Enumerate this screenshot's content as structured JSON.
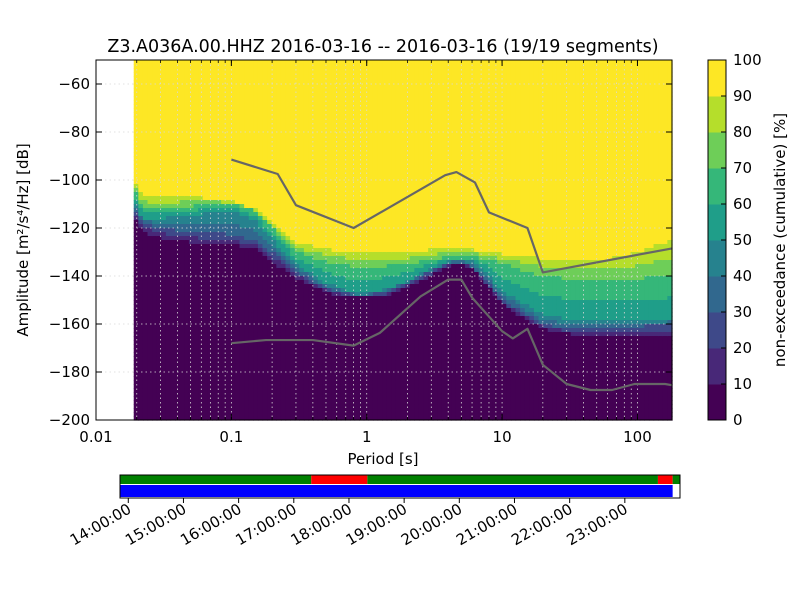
{
  "chart_data": [
    {
      "type": "heatmap",
      "title": "Z3.A036A.00.HHZ   2016-03-16 -- 2016-03-16  (19/19 segments)",
      "xlabel": "Period [s]",
      "ylabel": "Amplitude [m²/s⁴/Hz] [dB]",
      "x_scale": "log",
      "xlim": [
        0.01,
        180
      ],
      "ylim": [
        -200,
        -50
      ],
      "grid": true,
      "x_ticks": [
        {
          "value": 0.01,
          "label": "0.01"
        },
        {
          "value": 0.1,
          "label": "0.1"
        },
        {
          "value": 1,
          "label": "1"
        },
        {
          "value": 10,
          "label": "10"
        },
        {
          "value": 100,
          "label": "100"
        }
      ],
      "y_ticks": [
        {
          "value": -60,
          "label": "−60"
        },
        {
          "value": -80,
          "label": "−80"
        },
        {
          "value": -100,
          "label": "−100"
        },
        {
          "value": -120,
          "label": "−120"
        },
        {
          "value": -140,
          "label": "−140"
        },
        {
          "value": -160,
          "label": "−160"
        },
        {
          "value": -180,
          "label": "−180"
        },
        {
          "value": -200,
          "label": "−200"
        }
      ],
      "colorbar": {
        "label": "non-exceedance (cumulative) [%]",
        "range": [
          0,
          100
        ],
        "ticks": [
          "0",
          "10",
          "20",
          "30",
          "40",
          "50",
          "60",
          "70",
          "80",
          "90",
          "100"
        ],
        "colormap": [
          "#440154",
          "#482878",
          "#3e4989",
          "#31688e",
          "#26828e",
          "#1f9e89",
          "#35b779",
          "#6ece58",
          "#b5de2b",
          "#fde725"
        ]
      },
      "data_period_start": 0.019,
      "percentile_levels": [
        {
          "level": 10,
          "points": [
            [
              0.019,
              -115
            ],
            [
              0.022,
              -122
            ],
            [
              0.03,
              -124
            ],
            [
              0.05,
              -126
            ],
            [
              0.08,
              -127
            ],
            [
              0.1,
              -127
            ],
            [
              0.15,
              -129
            ],
            [
              0.2,
              -134
            ],
            [
              0.3,
              -141
            ],
            [
              0.5,
              -147
            ],
            [
              0.8,
              -149
            ],
            [
              1.0,
              -149
            ],
            [
              1.3,
              -149
            ],
            [
              2,
              -145
            ],
            [
              3,
              -140
            ],
            [
              4,
              -136
            ],
            [
              5,
              -135
            ],
            [
              6,
              -137
            ],
            [
              8,
              -145
            ],
            [
              10,
              -152
            ],
            [
              15,
              -158
            ],
            [
              20,
              -162
            ],
            [
              30,
              -164
            ],
            [
              50,
              -165
            ],
            [
              80,
              -165
            ],
            [
              100,
              -165
            ],
            [
              180,
              -165
            ]
          ]
        },
        {
          "level": 30,
          "points": [
            [
              0.019,
              -111
            ],
            [
              0.022,
              -118
            ],
            [
              0.03,
              -120
            ],
            [
              0.05,
              -122
            ],
            [
              0.08,
              -122
            ],
            [
              0.1,
              -123
            ],
            [
              0.15,
              -125
            ],
            [
              0.2,
              -130
            ],
            [
              0.3,
              -138
            ],
            [
              0.5,
              -145
            ],
            [
              0.8,
              -148
            ],
            [
              1.0,
              -148
            ],
            [
              1.3,
              -147
            ],
            [
              2,
              -143
            ],
            [
              3,
              -138
            ],
            [
              4,
              -135
            ],
            [
              5,
              -134
            ],
            [
              6,
              -136
            ],
            [
              8,
              -143
            ],
            [
              10,
              -150
            ],
            [
              15,
              -156
            ],
            [
              20,
              -160
            ],
            [
              30,
              -162
            ],
            [
              50,
              -162
            ],
            [
              80,
              -161
            ],
            [
              100,
              -161
            ],
            [
              180,
              -160
            ]
          ]
        },
        {
          "level": 50,
          "points": [
            [
              0.019,
              -108
            ],
            [
              0.022,
              -116
            ],
            [
              0.03,
              -116
            ],
            [
              0.05,
              -115
            ],
            [
              0.08,
              -113
            ],
            [
              0.1,
              -113
            ],
            [
              0.15,
              -117
            ],
            [
              0.2,
              -125
            ],
            [
              0.3,
              -135
            ],
            [
              0.5,
              -143
            ],
            [
              0.8,
              -147
            ],
            [
              1.0,
              -147
            ],
            [
              1.3,
              -146
            ],
            [
              2,
              -142
            ],
            [
              3,
              -137
            ],
            [
              4,
              -134
            ],
            [
              5,
              -133
            ],
            [
              6,
              -134
            ],
            [
              8,
              -140
            ],
            [
              10,
              -146
            ],
            [
              15,
              -152
            ],
            [
              20,
              -156
            ],
            [
              30,
              -158
            ],
            [
              50,
              -159
            ],
            [
              80,
              -159
            ],
            [
              100,
              -159
            ],
            [
              180,
              -158
            ]
          ]
        },
        {
          "level": 70,
          "points": [
            [
              0.019,
              -103
            ],
            [
              0.022,
              -111
            ],
            [
              0.03,
              -112
            ],
            [
              0.05,
              -111
            ],
            [
              0.08,
              -110
            ],
            [
              0.1,
              -110
            ],
            [
              0.15,
              -113
            ],
            [
              0.2,
              -120
            ],
            [
              0.3,
              -130
            ],
            [
              0.5,
              -134
            ],
            [
              0.8,
              -136
            ],
            [
              1.0,
              -137
            ],
            [
              1.3,
              -136
            ],
            [
              2,
              -135
            ],
            [
              3,
              -133
            ],
            [
              4,
              -132
            ],
            [
              5,
              -132
            ],
            [
              6,
              -132
            ],
            [
              8,
              -133
            ],
            [
              10,
              -135
            ],
            [
              15,
              -138
            ],
            [
              20,
              -140
            ],
            [
              30,
              -141
            ],
            [
              50,
              -141
            ],
            [
              80,
              -141
            ],
            [
              100,
              -141
            ],
            [
              180,
              -140
            ]
          ]
        },
        {
          "level": 90,
          "points": [
            [
              0.019,
              -100
            ],
            [
              0.022,
              -107
            ],
            [
              0.03,
              -107
            ],
            [
              0.05,
              -107
            ],
            [
              0.08,
              -108
            ],
            [
              0.1,
              -109
            ],
            [
              0.15,
              -112
            ],
            [
              0.2,
              -118
            ],
            [
              0.3,
              -126
            ],
            [
              0.5,
              -129
            ],
            [
              0.8,
              -130
            ],
            [
              1.0,
              -130
            ],
            [
              1.3,
              -130
            ],
            [
              2,
              -130
            ],
            [
              3,
              -129
            ],
            [
              4,
              -129
            ],
            [
              5,
              -129
            ],
            [
              6,
              -129
            ],
            [
              8,
              -130
            ],
            [
              10,
              -131
            ],
            [
              15,
              -131
            ],
            [
              20,
              -133
            ],
            [
              30,
              -134
            ],
            [
              50,
              -133
            ],
            [
              80,
              -132
            ],
            [
              100,
              -130
            ],
            [
              180,
              -125
            ]
          ]
        }
      ],
      "series": [
        {
          "values": [
            [
              0.1,
              -91.5
            ],
            [
              0.22,
              -97.5
            ],
            [
              0.3,
              -110.5
            ],
            [
              0.8,
              -120
            ],
            [
              3.8,
              -98
            ],
            [
              4.6,
              -96.7
            ],
            [
              6.3,
              -101
            ],
            [
              8,
              -113.5
            ],
            [
              15.4,
              -120
            ],
            [
              20,
              -138.5
            ],
            [
              180,
              -128.5
            ]
          ]
        },
        {
          "values": [
            [
              0.1,
              -168
            ],
            [
              0.18,
              -166.7
            ],
            [
              0.4,
              -166.7
            ],
            [
              0.8,
              -169
            ],
            [
              1.25,
              -163.7
            ],
            [
              2.5,
              -148.5
            ],
            [
              4,
              -141.5
            ],
            [
              5,
              -141.5
            ],
            [
              6,
              -149
            ],
            [
              10,
              -163
            ],
            [
              12,
              -166
            ],
            [
              15.4,
              -162
            ],
            [
              20,
              -177
            ],
            [
              30,
              -185
            ],
            [
              45,
              -187.5
            ],
            [
              65,
              -187.5
            ],
            [
              95,
              -185
            ],
            [
              160,
              -185
            ],
            [
              180,
              -185.5
            ]
          ]
        }
      ]
    },
    {
      "type": "timeline",
      "time_ticks": [
        "14:00:00",
        "15:00:00",
        "16:00:00",
        "17:00:00",
        "18:00:00",
        "19:00:00",
        "20:00:00",
        "21:00:00",
        "22:00:00",
        "23:00:00"
      ],
      "colors": {
        "used": "#008000",
        "excluded": "#ff0000",
        "data": "#0000ff"
      },
      "upper_bar": [
        {
          "start": "13:51:00",
          "end": "17:19:00",
          "status": "used"
        },
        {
          "start": "17:19:00",
          "end": "18:20:00",
          "status": "excluded"
        },
        {
          "start": "18:20:00",
          "end": "23:36:00",
          "status": "used"
        },
        {
          "start": "23:36:00",
          "end": "23:52:00",
          "status": "excluded"
        },
        {
          "start": "23:52:00",
          "end": "24:00:00",
          "status": "used"
        }
      ],
      "lower_bar": [
        {
          "start": "13:51:00",
          "end": "23:52:00",
          "status": "data"
        }
      ]
    }
  ]
}
